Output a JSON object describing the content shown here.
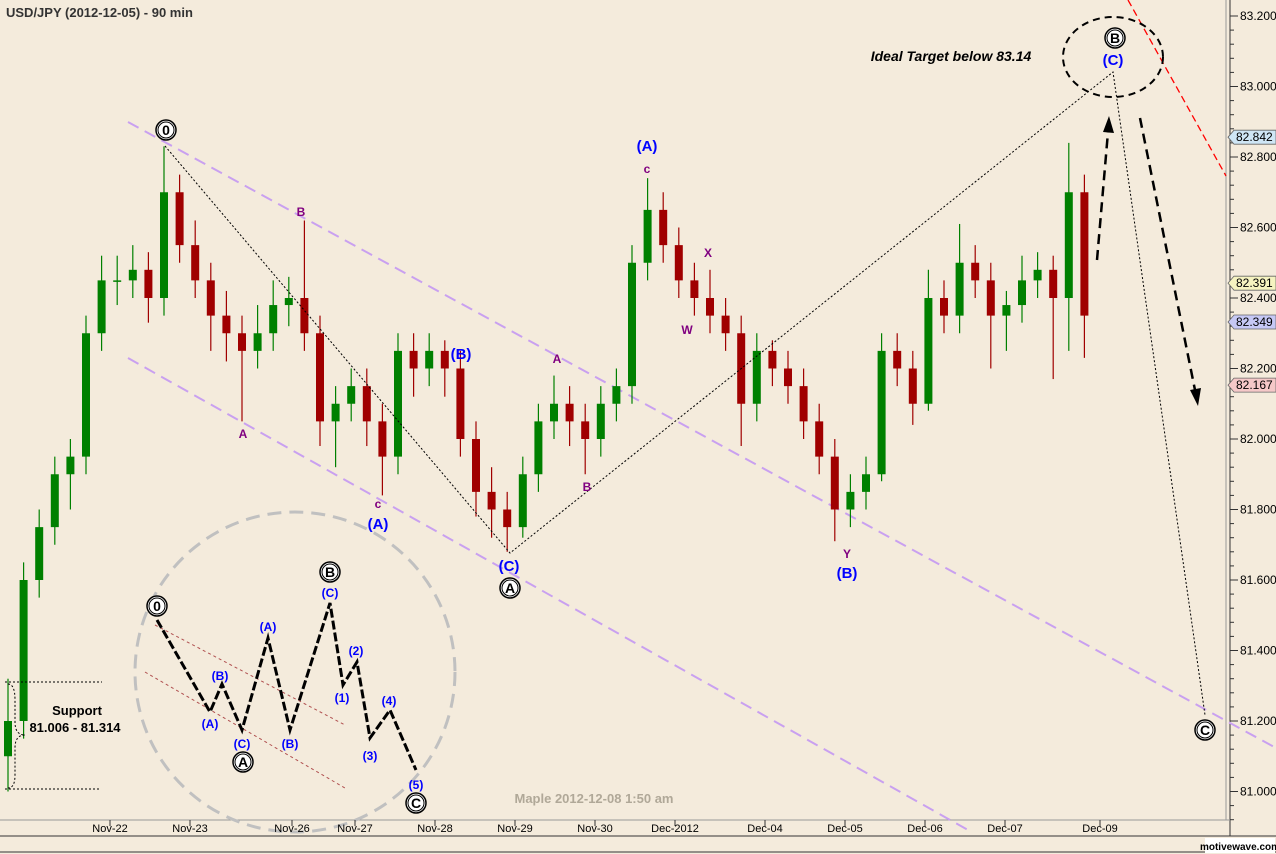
{
  "title": "USD/JPY (2012-12-05) - 90 min",
  "watermark": "Maple  2012-12-08  1:50 am",
  "logo": "motivewave.com",
  "target_note": "Ideal Target  below  83.14",
  "support": {
    "label": "Support",
    "range": "81.006 - 81.314"
  },
  "colors": {
    "background": "#f4ebdc",
    "up": "#008000",
    "down": "#a00000",
    "channel": "#c9a0f0",
    "target_line": "#ff0000",
    "wave_blue": "#0000ff",
    "wave_purple": "#800080"
  },
  "chart_data": {
    "type": "candlestick",
    "title": "USD/JPY (2012-12-05) - 90 min",
    "ylim": [
      80.9,
      83.24
    ],
    "ytick_step": 0.2,
    "x_tick_labels": [
      "Nov-22",
      "Nov-23",
      "Nov-26",
      "Nov-27",
      "Nov-28",
      "Nov-29",
      "Nov-30",
      "Dec-2012",
      "Dec-04",
      "Dec-05",
      "Dec-06",
      "Dec-07",
      "Dec-09"
    ],
    "price_tags": [
      {
        "value": "82.842",
        "color": "#cfe6f5"
      },
      {
        "value": "82.391",
        "color": "#f5f3c0"
      },
      {
        "value": "82.349",
        "color": "#c6c8f5"
      },
      {
        "value": "82.167",
        "color": "#f5c8c8"
      }
    ],
    "ohlc": [
      [
        81.1,
        81.32,
        81.0,
        81.2
      ],
      [
        81.2,
        81.65,
        81.15,
        81.6
      ],
      [
        81.6,
        81.8,
        81.55,
        81.75
      ],
      [
        81.75,
        81.95,
        81.7,
        81.9
      ],
      [
        81.9,
        82.0,
        81.8,
        81.95
      ],
      [
        81.95,
        82.35,
        81.9,
        82.3
      ],
      [
        82.3,
        82.52,
        82.25,
        82.45
      ],
      [
        82.45,
        82.52,
        82.38,
        82.45
      ],
      [
        82.45,
        82.55,
        82.4,
        82.48
      ],
      [
        82.48,
        82.53,
        82.33,
        82.4
      ],
      [
        82.4,
        82.83,
        82.35,
        82.7
      ],
      [
        82.7,
        82.75,
        82.5,
        82.55
      ],
      [
        82.55,
        82.62,
        82.4,
        82.45
      ],
      [
        82.45,
        82.5,
        82.25,
        82.35
      ],
      [
        82.35,
        82.42,
        82.22,
        82.3
      ],
      [
        82.3,
        82.35,
        82.05,
        82.25
      ],
      [
        82.25,
        82.38,
        82.2,
        82.3
      ],
      [
        82.3,
        82.45,
        82.25,
        82.38
      ],
      [
        82.38,
        82.46,
        82.32,
        82.4
      ],
      [
        82.4,
        82.62,
        82.25,
        82.3
      ],
      [
        82.3,
        82.35,
        81.98,
        82.05
      ],
      [
        82.05,
        82.15,
        81.92,
        82.1
      ],
      [
        82.1,
        82.2,
        82.05,
        82.15
      ],
      [
        82.15,
        82.2,
        81.98,
        82.05
      ],
      [
        82.05,
        82.1,
        81.84,
        81.95
      ],
      [
        81.95,
        82.3,
        81.9,
        82.25
      ],
      [
        82.25,
        82.3,
        82.12,
        82.2
      ],
      [
        82.2,
        82.3,
        82.15,
        82.25
      ],
      [
        82.25,
        82.28,
        82.12,
        82.2
      ],
      [
        82.2,
        82.25,
        81.95,
        82.0
      ],
      [
        82.0,
        82.05,
        81.78,
        81.85
      ],
      [
        81.85,
        81.92,
        81.72,
        81.8
      ],
      [
        81.8,
        81.85,
        81.68,
        81.75
      ],
      [
        81.75,
        81.95,
        81.72,
        81.9
      ],
      [
        81.9,
        82.1,
        81.85,
        82.05
      ],
      [
        82.05,
        82.18,
        82.0,
        82.1
      ],
      [
        82.1,
        82.15,
        81.98,
        82.05
      ],
      [
        82.05,
        82.1,
        81.9,
        82.0
      ],
      [
        82.0,
        82.15,
        81.95,
        82.1
      ],
      [
        82.1,
        82.2,
        82.05,
        82.15
      ],
      [
        82.15,
        82.55,
        82.1,
        82.5
      ],
      [
        82.5,
        82.74,
        82.45,
        82.65
      ],
      [
        82.65,
        82.7,
        82.5,
        82.55
      ],
      [
        82.55,
        82.6,
        82.4,
        82.45
      ],
      [
        82.45,
        82.5,
        82.35,
        82.4
      ],
      [
        82.4,
        82.48,
        82.3,
        82.35
      ],
      [
        82.35,
        82.4,
        82.25,
        82.3
      ],
      [
        82.3,
        82.35,
        81.98,
        82.1
      ],
      [
        82.1,
        82.3,
        82.05,
        82.25
      ],
      [
        82.25,
        82.28,
        82.15,
        82.2
      ],
      [
        82.2,
        82.25,
        82.1,
        82.15
      ],
      [
        82.15,
        82.2,
        82.0,
        82.05
      ],
      [
        82.05,
        82.1,
        81.9,
        81.95
      ],
      [
        81.95,
        82.0,
        81.71,
        81.8
      ],
      [
        81.8,
        81.9,
        81.75,
        81.85
      ],
      [
        81.85,
        81.95,
        81.8,
        81.9
      ],
      [
        81.9,
        82.3,
        81.88,
        82.25
      ],
      [
        82.25,
        82.3,
        82.15,
        82.2
      ],
      [
        82.2,
        82.25,
        82.04,
        82.1
      ],
      [
        82.1,
        82.48,
        82.08,
        82.4
      ],
      [
        82.4,
        82.45,
        82.3,
        82.35
      ],
      [
        82.35,
        82.61,
        82.3,
        82.5
      ],
      [
        82.5,
        82.55,
        82.4,
        82.45
      ],
      [
        82.45,
        82.5,
        82.2,
        82.35
      ],
      [
        82.35,
        82.42,
        82.25,
        82.38
      ],
      [
        82.38,
        82.52,
        82.33,
        82.45
      ],
      [
        82.45,
        82.53,
        82.4,
        82.48
      ],
      [
        82.48,
        82.52,
        82.17,
        82.4
      ],
      [
        82.4,
        82.84,
        82.25,
        82.7
      ],
      [
        82.7,
        82.75,
        82.23,
        82.35
      ]
    ],
    "wave_labels": {
      "w0": "0",
      "main_B_purple": "B",
      "main_A_purple": "A",
      "c1": "c",
      "A1": "(A)",
      "B1": "(B)",
      "a2": "A",
      "b2": "B",
      "C1": "(C)",
      "circA": "A",
      "A2": "(A)",
      "c3": "c",
      "x": "X",
      "w": "W",
      "y": "Y",
      "B2": "(B)",
      "circB": "B",
      "C2": "(C)",
      "circC": "C"
    },
    "inset_labels": {
      "i0": "0",
      "iB1": "(B)",
      "iA1": "(A)",
      "iC1": "(C)",
      "icA": "A",
      "iA2": "(A)",
      "iB2": "(B)",
      "icB": "B",
      "iC2": "(C)",
      "i2": "(2)",
      "i1": "(1)",
      "i3": "(3)",
      "i4": "(4)",
      "i5": "(5)",
      "icC": "C"
    }
  }
}
